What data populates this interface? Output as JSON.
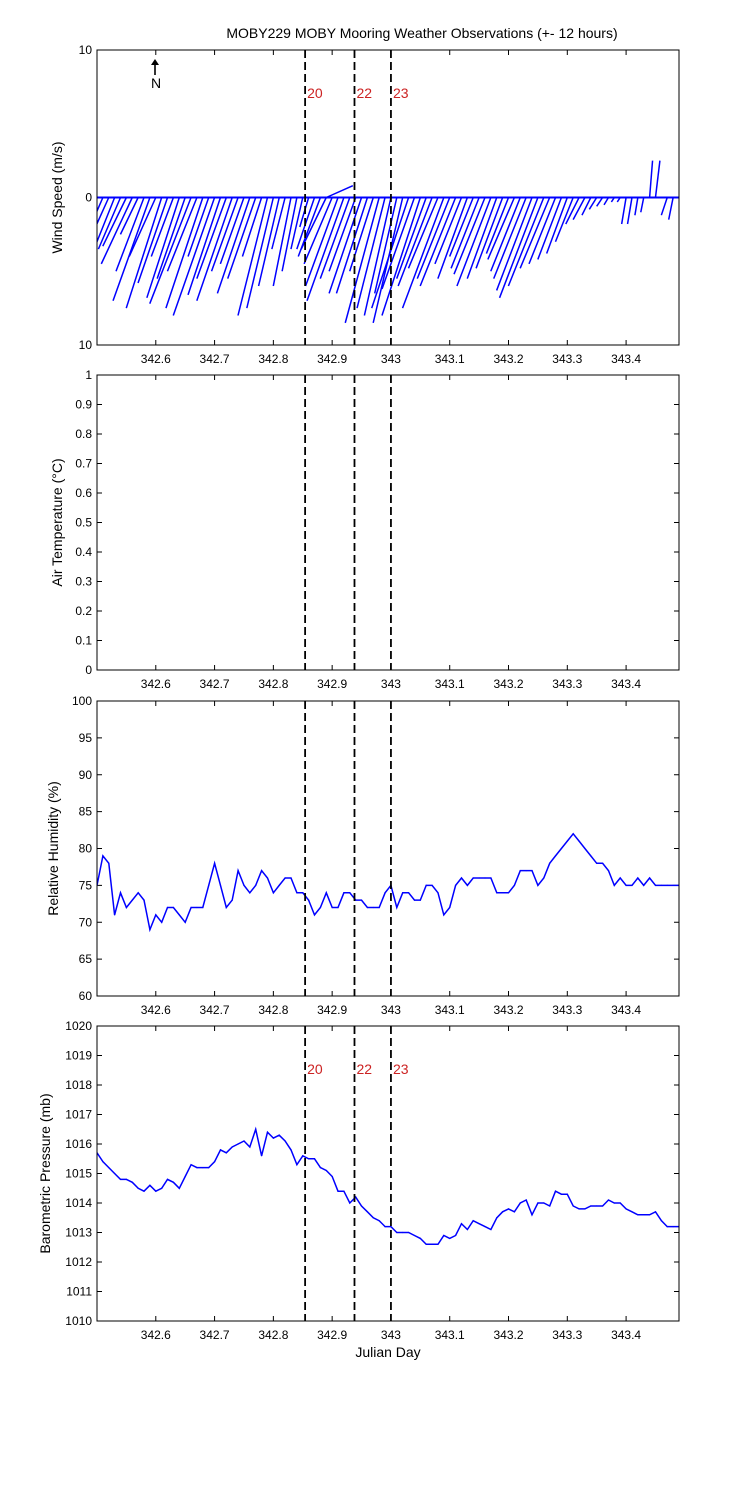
{
  "figure": {
    "title": "MOBY229 MOBY Mooring Weather Observations (+- 12 hours)",
    "north_label": "N"
  },
  "colors": {
    "data": "#0000ff",
    "marker_line": "#000000",
    "marker_label": "#cc2222",
    "axis": "#000000"
  },
  "chart_data": [
    {
      "type": "line",
      "subtype": "wind-vector-stick",
      "title": "MOBY229 MOBY Mooring Weather Observations (+- 12 hours)",
      "xlabel": "",
      "ylabel": "Wind Speed (m/s)",
      "xlim": [
        342.5,
        343.49
      ],
      "ylim": [
        -10,
        10
      ],
      "y_tick_values": [
        10,
        0,
        -10
      ],
      "y_tick_labels": [
        "10",
        "0",
        "10"
      ],
      "x_ticks": [
        342.6,
        342.7,
        342.8,
        342.9,
        343,
        343.1,
        343.2,
        343.3,
        343.4
      ],
      "x_tick_labels": [
        "342.6",
        "342.7",
        "342.8",
        "342.9",
        "343",
        "343.1",
        "343.2",
        "343.3",
        "343.4"
      ],
      "markers": [
        {
          "x": 342.854,
          "label": "20"
        },
        {
          "x": 342.938,
          "label": "22"
        },
        {
          "x": 343.0,
          "label": "23"
        }
      ],
      "series": [
        {
          "x": [
            342.5,
            342.51,
            342.52,
            342.53,
            342.54,
            342.55,
            342.56,
            342.57,
            342.58,
            342.59,
            342.6,
            342.61,
            342.62,
            342.63,
            342.64,
            342.65,
            342.66,
            342.67,
            342.68,
            342.69,
            342.7,
            342.71,
            342.72,
            342.73,
            342.74,
            342.75,
            342.76,
            342.77,
            342.78,
            342.79,
            342.8,
            342.81,
            342.82,
            342.83,
            342.84,
            342.85,
            342.86,
            342.87,
            342.88,
            342.89,
            342.9,
            342.91,
            342.92,
            342.93,
            342.94,
            342.95,
            342.96,
            342.97,
            342.98,
            342.99,
            343.0,
            343.01,
            343.02,
            343.03,
            343.04,
            343.05,
            343.06,
            343.07,
            343.08,
            343.09,
            343.1,
            343.11,
            343.12,
            343.13,
            343.14,
            343.15,
            343.16,
            343.17,
            343.18,
            343.19,
            343.2,
            343.21,
            343.22,
            343.23,
            343.24,
            343.25,
            343.26,
            343.27,
            343.28,
            343.29,
            343.3,
            343.31,
            343.32,
            343.33,
            343.34,
            343.35,
            343.36,
            343.37,
            343.38,
            343.39,
            343.4,
            343.41,
            343.42,
            343.43,
            343.44,
            343.45,
            343.46,
            343.47,
            343.48
          ],
          "u": [
            -1.0,
            -1.3,
            -1.8,
            -2.2,
            -1.5,
            -1.6,
            -2.1,
            -1.2,
            -1.9,
            -2.5,
            -1.8,
            -2.4,
            -2.0,
            -1.5,
            -2.2,
            -1.9,
            -2.8,
            -2.0,
            -2.5,
            -1.4,
            -2.8,
            -2.2,
            -2.0,
            -2.4,
            -1.8,
            -1.6,
            -2.2,
            -1.9,
            -1.3,
            -2.0,
            -1.8,
            -1.4,
            -0.9,
            -1.2,
            -1.0,
            -0.8,
            -0.6,
            -1.2,
            -1.5,
            -1.7,
            -1.9,
            -2.2,
            -2.5,
            -2.0,
            -1.8,
            -2.2,
            -2.1,
            -1.6,
            -2.3,
            -1.9,
            -1.8,
            -1.5,
            -2.0,
            -2.5,
            -2.2,
            -2.6,
            -2.0,
            -2.3,
            -2.0,
            -2.8,
            -2.2,
            -2.4,
            -1.8,
            -2.0,
            -1.6,
            -1.9,
            -2.1,
            -2.3,
            -2.0,
            -1.8,
            -1.5,
            -1.8,
            -2.0,
            -2.2,
            -2.4,
            -2.6,
            -2.4,
            -2.0,
            -1.8,
            -1.6,
            -1.4,
            -1.2,
            -0.9,
            -0.8,
            -0.6,
            -0.5,
            -0.4,
            -0.3,
            -0.2,
            -0.2,
            -0.3,
            -0.3,
            -0.2,
            -0.2,
            0.2,
            0.3,
            0.3,
            -0.4,
            -0.3
          ],
          "v": [
            -2.5,
            -3.0,
            -4.0,
            -5.5,
            -3.5,
            -3.3,
            -4.5,
            -2.5,
            -5.0,
            -7.0,
            -4.0,
            -7.5,
            -5.8,
            -4.0,
            -6.8,
            -5.5,
            -7.2,
            -5.0,
            -7.5,
            -4.0,
            -8.0,
            -6.6,
            -5.5,
            -7.0,
            -5.0,
            -4.5,
            -6.5,
            -5.5,
            -4.0,
            -8.0,
            -7.5,
            -6.0,
            -3.5,
            -6.0,
            -5.0,
            -3.5,
            -2.0,
            -3.5,
            -4.0,
            -3.5,
            -4.5,
            -6.0,
            -7.0,
            -5.5,
            -5.0,
            -6.5,
            -6.5,
            -5.0,
            -8.5,
            -7.5,
            -8.0,
            -6.5,
            -8.5,
            -7.5,
            -6.2,
            -8.0,
            -5.5,
            -6.0,
            -4.8,
            -7.5,
            -5.5,
            -6.0,
            -4.5,
            -5.5,
            -4.0,
            -4.8,
            -5.2,
            -6.0,
            -5.5,
            -4.8,
            -3.8,
            -4.2,
            -5.0,
            -5.5,
            -6.3,
            -6.8,
            -6.0,
            -4.8,
            -4.5,
            -4.2,
            -3.8,
            -3.0,
            -1.8,
            -1.5,
            -1.2,
            -0.8,
            -0.6,
            -0.5,
            -0.3,
            -0.3,
            -1.8,
            -1.8,
            -1.2,
            -1.0,
            2.5,
            2.5,
            0.0,
            -1.2,
            -1.5
          ],
          "name": ""
        },
        {
          "x": [
            342.89
          ],
          "u": [
            1.8
          ],
          "v": [
            0.8
          ],
          "name": ""
        }
      ]
    },
    {
      "type": "line",
      "xlabel": "",
      "ylabel": "Air Temperature (°C)",
      "xlim": [
        342.5,
        343.49
      ],
      "ylim": [
        0,
        1
      ],
      "y_tick_values": [
        0,
        0.1,
        0.2,
        0.3,
        0.4,
        0.5,
        0.6,
        0.7,
        0.8,
        0.9,
        1
      ],
      "y_tick_labels": [
        "0",
        "0.1",
        "0.2",
        "0.3",
        "0.4",
        "0.5",
        "0.6",
        "0.7",
        "0.8",
        "0.9",
        "1"
      ],
      "x_ticks": [
        342.6,
        342.7,
        342.8,
        342.9,
        343,
        343.1,
        343.2,
        343.3,
        343.4
      ],
      "x_tick_labels": [
        "342.6",
        "342.7",
        "342.8",
        "342.9",
        "343",
        "343.1",
        "343.2",
        "343.3",
        "343.4"
      ],
      "markers": [
        {
          "x": 342.854,
          "label": ""
        },
        {
          "x": 342.938,
          "label": ""
        },
        {
          "x": 343.0,
          "label": ""
        }
      ],
      "series": []
    },
    {
      "type": "line",
      "xlabel": "",
      "ylabel": "Relative Humidity (%)",
      "xlim": [
        342.5,
        343.49
      ],
      "ylim": [
        60,
        100
      ],
      "y_tick_values": [
        60,
        65,
        70,
        75,
        80,
        85,
        90,
        95,
        100
      ],
      "y_tick_labels": [
        "60",
        "65",
        "70",
        "75",
        "80",
        "85",
        "90",
        "95",
        "100"
      ],
      "x_ticks": [
        342.6,
        342.7,
        342.8,
        342.9,
        343,
        343.1,
        343.2,
        343.3,
        343.4
      ],
      "x_tick_labels": [
        "342.6",
        "342.7",
        "342.8",
        "342.9",
        "343",
        "343.1",
        "343.2",
        "343.3",
        "343.4"
      ],
      "markers": [
        {
          "x": 342.854,
          "label": ""
        },
        {
          "x": 342.938,
          "label": ""
        },
        {
          "x": 343.0,
          "label": ""
        }
      ],
      "series": [
        {
          "name": "",
          "x": [
            342.5,
            342.51,
            342.52,
            342.53,
            342.54,
            342.55,
            342.56,
            342.57,
            342.58,
            342.59,
            342.6,
            342.61,
            342.62,
            342.63,
            342.64,
            342.65,
            342.66,
            342.67,
            342.68,
            342.69,
            342.7,
            342.71,
            342.72,
            342.73,
            342.74,
            342.75,
            342.76,
            342.77,
            342.78,
            342.79,
            342.8,
            342.81,
            342.82,
            342.83,
            342.84,
            342.85,
            342.86,
            342.87,
            342.88,
            342.89,
            342.9,
            342.91,
            342.92,
            342.93,
            342.94,
            342.95,
            342.96,
            342.97,
            342.98,
            342.99,
            343.0,
            343.01,
            343.02,
            343.03,
            343.04,
            343.05,
            343.06,
            343.07,
            343.08,
            343.09,
            343.1,
            343.11,
            343.12,
            343.13,
            343.14,
            343.15,
            343.16,
            343.17,
            343.18,
            343.19,
            343.2,
            343.21,
            343.22,
            343.23,
            343.24,
            343.25,
            343.26,
            343.27,
            343.28,
            343.29,
            343.3,
            343.31,
            343.32,
            343.33,
            343.34,
            343.35,
            343.36,
            343.37,
            343.38,
            343.39,
            343.4,
            343.41,
            343.42,
            343.43,
            343.44,
            343.45,
            343.46,
            343.47,
            343.48,
            343.49
          ],
          "y": [
            75,
            79,
            78,
            71,
            74,
            72,
            73,
            74,
            73,
            69,
            71,
            70,
            72,
            72,
            71,
            70,
            72,
            72,
            72,
            75,
            78,
            75,
            72,
            73,
            77,
            75,
            74,
            75,
            77,
            76,
            74,
            75,
            76,
            76,
            74,
            74,
            73,
            71,
            72,
            74,
            72,
            72,
            74,
            74,
            73,
            73,
            72,
            72,
            72,
            74,
            75,
            72,
            74,
            74,
            73,
            73,
            75,
            75,
            74,
            71,
            72,
            75,
            76,
            75,
            76,
            76,
            76,
            76,
            74,
            74,
            74,
            75,
            77,
            77,
            77,
            75,
            76,
            78,
            79,
            80,
            81,
            82,
            81,
            80,
            79,
            78,
            78,
            77,
            75,
            76,
            75,
            75,
            76,
            75,
            76,
            75,
            75,
            75,
            75,
            75
          ]
        }
      ]
    },
    {
      "type": "line",
      "xlabel": "Julian Day",
      "ylabel": "Barometric Pressure (mb)",
      "xlim": [
        342.5,
        343.49
      ],
      "ylim": [
        1010,
        1020
      ],
      "y_tick_values": [
        1010,
        1011,
        1012,
        1013,
        1014,
        1015,
        1016,
        1017,
        1018,
        1019,
        1020
      ],
      "y_tick_labels": [
        "1010",
        "1011",
        "1012",
        "1013",
        "1014",
        "1015",
        "1016",
        "1017",
        "1018",
        "1019",
        "1020"
      ],
      "x_ticks": [
        342.6,
        342.7,
        342.8,
        342.9,
        343,
        343.1,
        343.2,
        343.3,
        343.4
      ],
      "x_tick_labels": [
        "342.6",
        "342.7",
        "342.8",
        "342.9",
        "343",
        "343.1",
        "343.2",
        "343.3",
        "343.4"
      ],
      "markers": [
        {
          "x": 342.854,
          "label": "20"
        },
        {
          "x": 342.938,
          "label": "22"
        },
        {
          "x": 343.0,
          "label": "23"
        }
      ],
      "series": [
        {
          "name": "",
          "x": [
            342.5,
            342.51,
            342.52,
            342.53,
            342.54,
            342.55,
            342.56,
            342.57,
            342.58,
            342.59,
            342.6,
            342.61,
            342.62,
            342.63,
            342.64,
            342.65,
            342.66,
            342.67,
            342.68,
            342.69,
            342.7,
            342.71,
            342.72,
            342.73,
            342.74,
            342.75,
            342.76,
            342.77,
            342.78,
            342.79,
            342.8,
            342.81,
            342.82,
            342.83,
            342.84,
            342.85,
            342.86,
            342.87,
            342.88,
            342.89,
            342.9,
            342.91,
            342.92,
            342.93,
            342.94,
            342.95,
            342.96,
            342.97,
            342.98,
            342.99,
            343.0,
            343.01,
            343.02,
            343.03,
            343.04,
            343.05,
            343.06,
            343.07,
            343.08,
            343.09,
            343.1,
            343.11,
            343.12,
            343.13,
            343.14,
            343.15,
            343.16,
            343.17,
            343.18,
            343.19,
            343.2,
            343.21,
            343.22,
            343.23,
            343.24,
            343.25,
            343.26,
            343.27,
            343.28,
            343.29,
            343.3,
            343.31,
            343.32,
            343.33,
            343.34,
            343.35,
            343.36,
            343.37,
            343.38,
            343.39,
            343.4,
            343.41,
            343.42,
            343.43,
            343.44,
            343.45,
            343.46,
            343.47,
            343.48,
            343.49
          ],
          "y": [
            1015.7,
            1015.4,
            1015.2,
            1015.0,
            1014.8,
            1014.8,
            1014.7,
            1014.5,
            1014.4,
            1014.6,
            1014.4,
            1014.5,
            1014.8,
            1014.7,
            1014.5,
            1014.9,
            1015.3,
            1015.2,
            1015.2,
            1015.2,
            1015.4,
            1015.8,
            1015.7,
            1015.9,
            1016.0,
            1016.1,
            1015.9,
            1016.5,
            1015.6,
            1016.4,
            1016.2,
            1016.3,
            1016.1,
            1015.8,
            1015.3,
            1015.6,
            1015.5,
            1015.5,
            1015.2,
            1015.1,
            1014.9,
            1014.4,
            1014.4,
            1014.0,
            1014.2,
            1013.9,
            1013.7,
            1013.5,
            1013.4,
            1013.2,
            1013.2,
            1013.0,
            1013.0,
            1013.0,
            1012.9,
            1012.8,
            1012.6,
            1012.6,
            1012.6,
            1012.9,
            1012.8,
            1012.9,
            1013.3,
            1013.1,
            1013.4,
            1013.3,
            1013.2,
            1013.1,
            1013.5,
            1013.7,
            1013.8,
            1013.7,
            1014.0,
            1014.1,
            1013.6,
            1014.0,
            1014.0,
            1013.9,
            1014.4,
            1014.3,
            1014.3,
            1013.9,
            1013.8,
            1013.8,
            1013.9,
            1013.9,
            1013.9,
            1014.1,
            1014.0,
            1014.0,
            1013.8,
            1013.7,
            1013.6,
            1013.6,
            1013.6,
            1013.7,
            1013.4,
            1013.2,
            1013.2,
            1013.2
          ]
        }
      ]
    }
  ]
}
